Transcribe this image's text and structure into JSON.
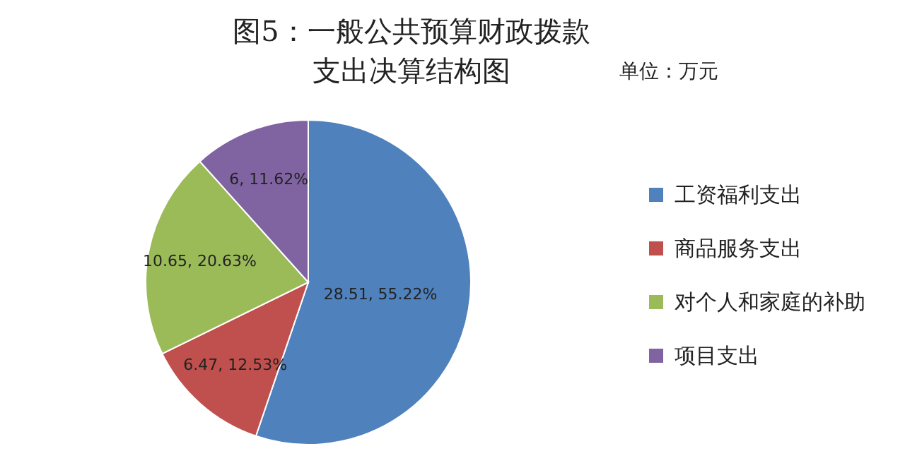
{
  "chart_data": {
    "type": "pie",
    "title": "图5：一般公共预算财政拨款支出决算结构图",
    "annotations": [
      "单位：万元"
    ],
    "categories": [
      "工资福利支出",
      "商品服务支出",
      "对个人和家庭的补助",
      "项目支出"
    ],
    "values": [
      28.51,
      6.47,
      10.65,
      6
    ],
    "colors": [
      "#4f81bd",
      "#c0504d",
      "#9bbb59",
      "#8064a2"
    ],
    "value_labels": [
      "28.51, 55.22%",
      "6.47, 12.53%",
      "10.65, 20.63%",
      "6, 11.62%"
    ],
    "legend": "right"
  }
}
